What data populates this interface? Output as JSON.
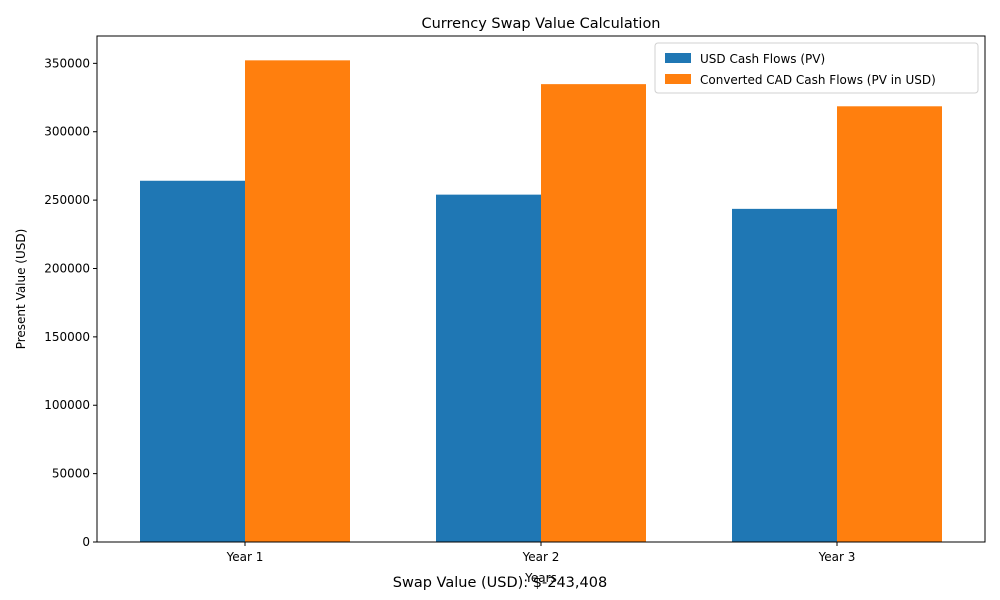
{
  "chart_data": {
    "type": "bar",
    "title": "Currency Swap Value Calculation",
    "xlabel": "Years",
    "ylabel": "Present Value (USD)",
    "categories": [
      "Year 1",
      "Year 2",
      "Year 3"
    ],
    "series": [
      {
        "name": "USD Cash Flows (PV)",
        "color": "#1f77b4",
        "values": [
          264151,
          254000,
          243600
        ]
      },
      {
        "name": "Converted CAD Cash Flows (PV in USD)",
        "color": "#ff7f0e",
        "values": [
          352200,
          334800,
          318600
        ]
      }
    ],
    "ylim": [
      0,
      370000
    ],
    "yticks": [
      0,
      50000,
      100000,
      150000,
      200000,
      250000,
      300000,
      350000
    ],
    "legend_position": "top-right",
    "grid": false
  },
  "footnote": "Swap Value (USD): $-243,408"
}
